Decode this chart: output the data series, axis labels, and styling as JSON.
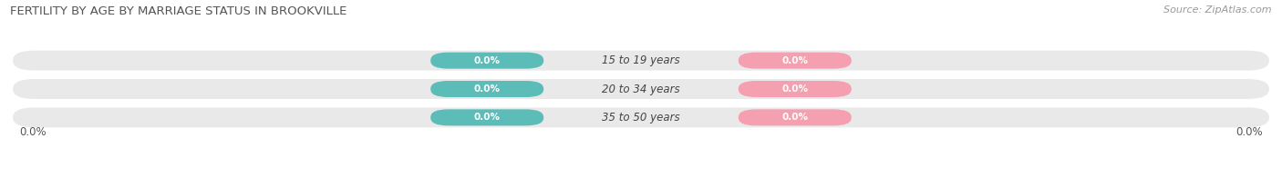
{
  "title": "FERTILITY BY AGE BY MARRIAGE STATUS IN BROOKVILLE",
  "source": "Source: ZipAtlas.com",
  "categories": [
    "15 to 19 years",
    "20 to 34 years",
    "35 to 50 years"
  ],
  "married_values": [
    0.0,
    0.0,
    0.0
  ],
  "unmarried_values": [
    0.0,
    0.0,
    0.0
  ],
  "married_color": "#5bbcb8",
  "unmarried_color": "#f4a0b0",
  "bar_bg_color": "#e9e9e9",
  "label_text": "0.0%",
  "left_axis_label": "0.0%",
  "right_axis_label": "0.0%",
  "background_color": "#ffffff",
  "title_fontsize": 9.5,
  "source_fontsize": 8,
  "tick_fontsize": 8.5,
  "legend_fontsize": 8.5,
  "category_fontsize": 8.5,
  "label_fontsize": 7.5
}
